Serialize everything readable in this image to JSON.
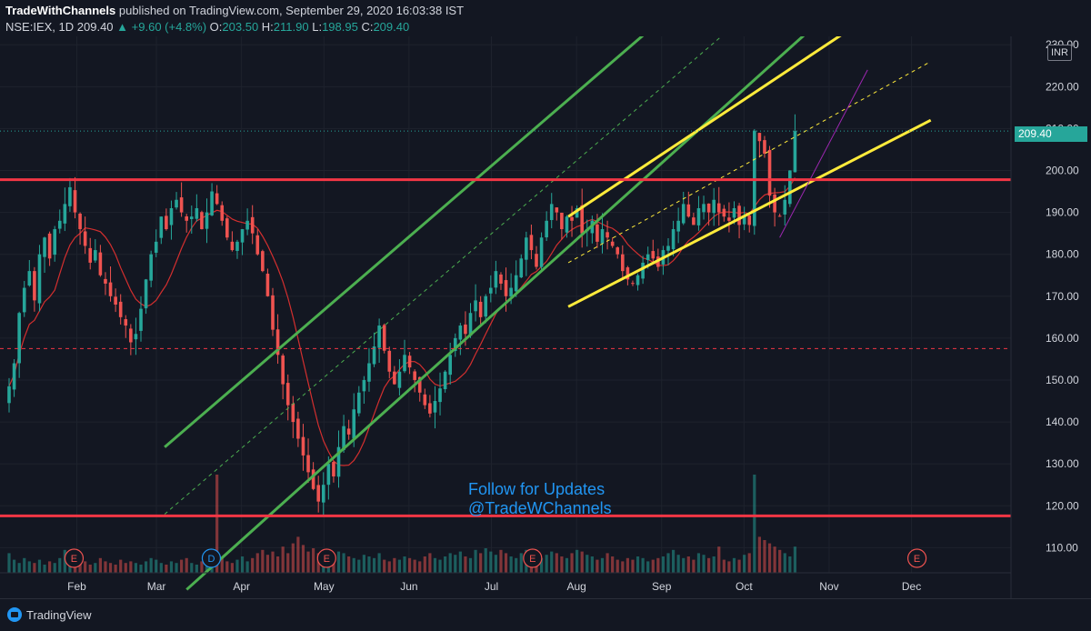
{
  "header": {
    "author": "TradeWithChannels",
    "publish_text": "published on TradingView.com, September 29, 2020 16:03:38 IST",
    "symbol": "NSE:IEX, 1D",
    "last": "209.40",
    "change": "+9.60 (+4.8%)",
    "o_label": "O:",
    "o_value": "203.50",
    "h_label": "H:",
    "h_value": "211.90",
    "l_label": "L:",
    "l_value": "198.95",
    "c_label": "C:",
    "c_value": "209.40",
    "up_arrow": "▲"
  },
  "axis": {
    "currency": "INR",
    "last_price_label": "209.40"
  },
  "watermark": {
    "line1": "Follow for Updates",
    "line2": "@TradeWChannels"
  },
  "footer": {
    "brand": "TradingView"
  },
  "colors": {
    "background": "#131722",
    "bull": "#26a69a",
    "bear": "#ef5350",
    "support_resistance": "#f23645",
    "green_channel": "#4caf50",
    "yellow_channel": "#ffeb3b",
    "ma": "#d32f2f",
    "purple": "#9c27b0",
    "watermark": "#2196f3"
  },
  "chart_data": {
    "type": "candlestick",
    "ylim": [
      104,
      232
    ],
    "y_ticks": [
      110,
      120,
      130,
      140,
      150,
      160,
      170,
      180,
      190,
      200,
      210,
      220,
      230
    ],
    "x_ticks": [
      {
        "label": "Feb",
        "day": 24
      },
      {
        "label": "Mar",
        "day": 53
      },
      {
        "label": "Apr",
        "day": 84
      },
      {
        "label": "May",
        "day": 114
      },
      {
        "label": "Jun",
        "day": 145
      },
      {
        "label": "Jul",
        "day": 175
      },
      {
        "label": "Aug",
        "day": 206
      },
      {
        "label": "Sep",
        "day": 237
      },
      {
        "label": "Oct",
        "day": 267
      },
      {
        "label": "Nov",
        "day": 298
      },
      {
        "label": "Dec",
        "day": 328
      }
    ],
    "horizontal_lines": [
      {
        "value": 197.8,
        "style": "solid",
        "color": "#f23645"
      },
      {
        "value": 117.6,
        "style": "solid",
        "color": "#f23645"
      },
      {
        "value": 157.5,
        "style": "dashed",
        "color": "#f23645"
      }
    ],
    "events": [
      {
        "label": "E",
        "day": 23
      },
      {
        "label": "D",
        "day": 73
      },
      {
        "label": "E",
        "day": 115
      },
      {
        "label": "E",
        "day": 190
      },
      {
        "label": "E",
        "day": 330
      }
    ],
    "close": [
      148.5,
      154,
      166,
      172,
      176,
      169,
      180,
      184,
      179,
      186,
      188,
      192,
      196,
      190,
      186,
      182,
      178,
      181,
      175,
      173,
      170,
      168,
      165,
      163,
      159,
      161,
      167,
      174,
      180,
      183,
      189,
      186,
      191,
      193,
      190,
      188,
      189,
      191,
      186,
      190,
      195,
      192,
      188,
      184,
      181,
      183,
      186,
      188,
      185,
      180,
      176,
      170,
      162,
      156,
      149,
      144,
      140,
      136,
      132,
      128,
      124,
      121,
      125,
      130,
      127,
      134,
      139,
      137,
      143,
      147,
      150,
      154,
      158,
      163,
      157,
      152,
      149,
      152,
      156,
      153,
      150,
      147,
      144,
      142,
      145,
      148,
      152,
      156,
      160,
      163,
      161,
      166,
      169,
      165,
      170,
      172,
      176,
      173,
      170,
      172,
      175,
      179,
      184,
      181,
      177,
      184,
      188,
      192,
      190,
      186,
      189,
      188,
      191,
      185,
      186,
      188,
      183,
      186,
      184,
      182,
      180,
      176,
      174,
      173,
      175,
      178,
      180,
      179,
      177,
      181,
      182,
      186,
      188,
      192,
      189,
      187,
      191,
      192,
      190,
      193,
      190,
      189,
      188,
      191,
      187,
      189,
      187,
      209.5,
      207,
      204,
      194,
      190,
      189,
      193,
      200,
      209.4
    ],
    "volume_scale_note": "volume bars shown at bottom, relative heights",
    "volume": [
      12,
      8,
      6,
      9,
      7,
      6,
      8,
      5,
      7,
      6,
      9,
      14,
      11,
      8,
      6,
      7,
      5,
      6,
      9,
      7,
      6,
      5,
      8,
      6,
      7,
      6,
      5,
      7,
      9,
      8,
      6,
      5,
      7,
      6,
      8,
      9,
      6,
      5,
      7,
      6,
      8,
      60,
      9,
      7,
      6,
      8,
      10,
      7,
      9,
      12,
      14,
      11,
      13,
      10,
      16,
      12,
      18,
      22,
      17,
      13,
      15,
      12,
      10,
      9,
      11,
      13,
      12,
      10,
      9,
      8,
      11,
      10,
      9,
      12,
      8,
      7,
      9,
      8,
      10,
      9,
      8,
      7,
      10,
      12,
      9,
      8,
      10,
      12,
      11,
      13,
      10,
      9,
      14,
      12,
      15,
      13,
      11,
      14,
      12,
      10,
      9,
      12,
      14,
      11,
      10,
      9,
      11,
      13,
      12,
      10,
      9,
      12,
      14,
      13,
      11,
      10,
      8,
      9,
      12,
      10,
      8,
      7,
      9,
      8,
      10,
      9,
      7,
      8,
      9,
      10,
      12,
      14,
      11,
      9,
      10,
      8,
      12,
      11,
      9,
      10,
      16,
      8,
      7,
      9,
      8,
      11,
      12,
      60,
      22,
      20,
      18,
      16,
      14,
      12,
      10,
      16
    ]
  }
}
